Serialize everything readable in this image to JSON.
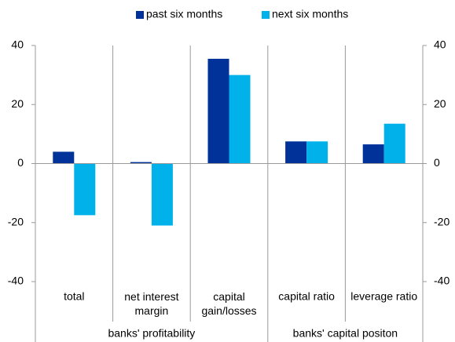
{
  "chart_data": {
    "type": "bar",
    "categories": [
      "total",
      "net interest\nmargin",
      "capital\ngain/losses",
      "capital ratio",
      "leverage ratio"
    ],
    "category_groups": [
      {
        "name": "banks' profitability",
        "categories": [
          "total",
          "net interest\nmargin",
          "capital\ngain/losses"
        ]
      },
      {
        "name": "banks' capital positon",
        "categories": [
          "capital ratio",
          "leverage ratio"
        ]
      }
    ],
    "series": [
      {
        "name": "past six months",
        "color": "#003299",
        "values": [
          4,
          0.5,
          35.5,
          7.5,
          6.5
        ]
      },
      {
        "name": "next six months",
        "color": "#00b1ea",
        "values": [
          -17.5,
          -21,
          30,
          7.5,
          13.5
        ]
      }
    ],
    "ylim": [
      -40,
      40
    ],
    "yticks": [
      -40,
      -20,
      0,
      20,
      40
    ],
    "y2lim": [
      -40,
      40
    ],
    "y2ticks": [
      -40,
      -20,
      0,
      20,
      40
    ],
    "legend": "top",
    "grid": false
  }
}
